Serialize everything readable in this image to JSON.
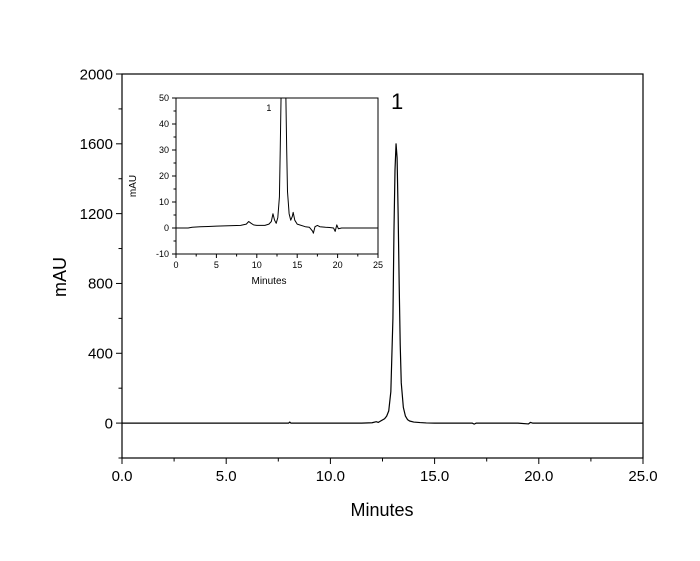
{
  "chart_data": [
    {
      "type": "line",
      "role": "main",
      "xlabel": "Minutes",
      "ylabel": "mAU",
      "xlim": [
        0,
        25
      ],
      "ylim": [
        -200,
        2000
      ],
      "x_ticks": [
        0,
        5,
        10,
        15,
        20,
        25
      ],
      "x_tick_labels": [
        "0.0",
        "5.0",
        "10.0",
        "15.0",
        "20.0",
        "25.0"
      ],
      "y_ticks": [
        0,
        400,
        800,
        1200,
        1600,
        2000
      ],
      "y_tick_labels": [
        "0",
        "400",
        "800",
        "1200",
        "1600",
        "2000"
      ],
      "grid": false,
      "series": [
        {
          "x": [
            0,
            8.0,
            8.05,
            8.1,
            9.0,
            11.5,
            12.0,
            12.2,
            12.3,
            12.6,
            12.7,
            12.8,
            12.9,
            13.0,
            13.05,
            13.1,
            13.15,
            13.2,
            13.25,
            13.3,
            13.35,
            13.4,
            13.5,
            13.6,
            13.7,
            13.8,
            14.0,
            14.3,
            14.6,
            15.0,
            16.0,
            16.8,
            16.9,
            17.0,
            17.5,
            19.0,
            19.5,
            19.6,
            19.7,
            20.0,
            25.0
          ],
          "y": [
            0,
            0,
            6,
            0,
            0,
            0,
            2,
            8,
            4,
            25,
            40,
            70,
            180,
            600,
            1100,
            1450,
            1600,
            1520,
            1200,
            800,
            450,
            230,
            90,
            40,
            20,
            12,
            6,
            3,
            1,
            0,
            0,
            0,
            -6,
            0,
            0,
            0,
            -5,
            4,
            0,
            0,
            0
          ]
        }
      ],
      "annotations": [
        {
          "text": "1",
          "x": 13.2,
          "y": 1800
        }
      ]
    },
    {
      "type": "line",
      "role": "inset",
      "xlabel": "Minutes",
      "ylabel": "mAU",
      "xlim": [
        0,
        25
      ],
      "ylim": [
        -10,
        50
      ],
      "x_ticks": [
        0,
        5,
        10,
        15,
        20,
        25
      ],
      "x_tick_labels": [
        "0",
        "5",
        "10",
        "15",
        "20",
        "25"
      ],
      "y_ticks": [
        -10,
        0,
        10,
        20,
        30,
        40,
        50
      ],
      "y_tick_labels": [
        "-10",
        "0",
        "10",
        "20",
        "30",
        "40",
        "50"
      ],
      "grid": false,
      "series": [
        {
          "x": [
            0,
            1.5,
            2,
            3,
            4,
            5,
            6,
            7,
            8,
            8.7,
            9.0,
            9.3,
            9.6,
            10,
            11,
            11.5,
            11.8,
            12.0,
            12.2,
            12.4,
            12.6,
            12.8,
            12.9,
            13.0,
            13.6,
            13.7,
            13.8,
            14.0,
            14.2,
            14.4,
            14.5,
            14.7,
            15,
            16,
            16.5,
            16.9,
            17.0,
            17.2,
            17.5,
            17.8,
            18.5,
            19,
            19.5,
            19.7,
            19.9,
            20.1,
            20.5,
            21,
            22,
            23,
            24,
            25
          ],
          "y": [
            0,
            0,
            0.3,
            0.5,
            0.6,
            0.7,
            0.8,
            0.9,
            1.0,
            1.5,
            2.5,
            1.8,
            1.2,
            1.0,
            1.0,
            1.5,
            2.5,
            5.5,
            3.0,
            1.8,
            4.0,
            12.0,
            30.0,
            50.0,
            50.0,
            30.0,
            14.0,
            5.5,
            3.0,
            4.5,
            6.0,
            3.0,
            1.5,
            0.5,
            0.3,
            -1.2,
            -2.0,
            0.5,
            1.0,
            0.5,
            0.3,
            0.2,
            0.0,
            -1.3,
            1.2,
            -0.3,
            0.0,
            0.0,
            0.0,
            0.0,
            0.0,
            0.0
          ]
        }
      ],
      "annotations": [
        {
          "text": "1",
          "x": 11.5,
          "y": 45
        }
      ]
    }
  ]
}
